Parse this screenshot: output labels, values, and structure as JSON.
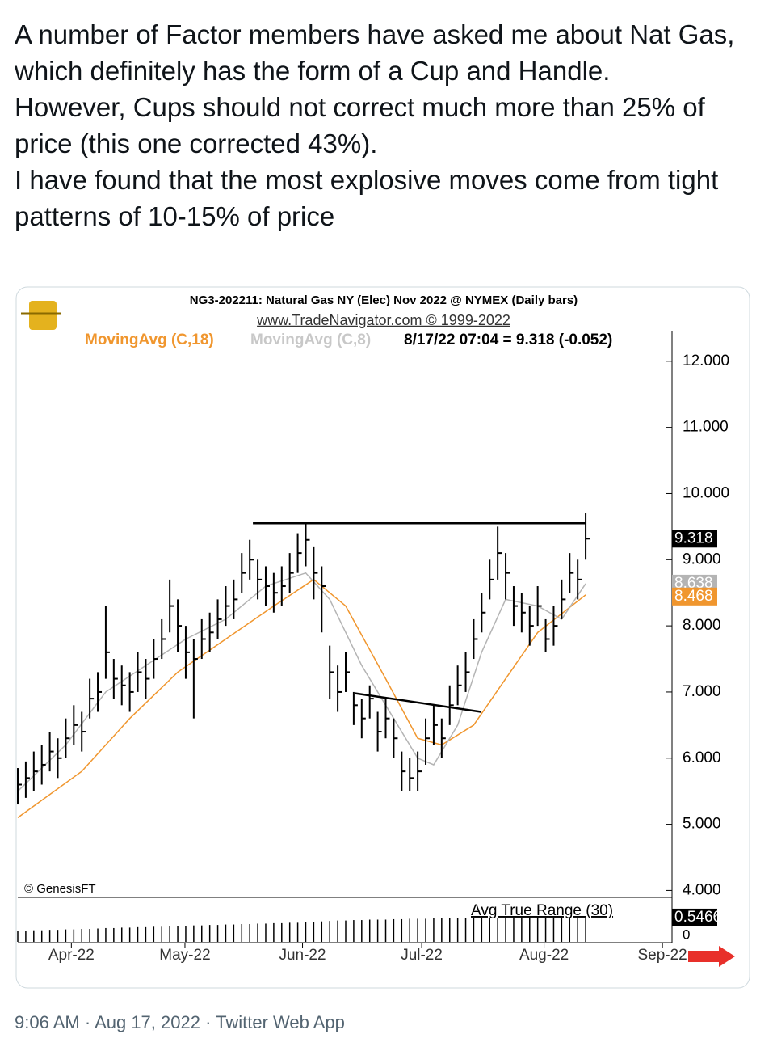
{
  "tweet": {
    "paragraphs": [
      "A number of Factor members have asked me about Nat Gas, which definitely has the form of a Cup and Handle.",
      "However, Cups should not correct much more than 25% of price (this one corrected 43%).",
      "I have found that the most explosive moves come from tight patterns of 10-15% of price"
    ],
    "footer": {
      "time": "9:06 AM",
      "date": "Aug 17, 2022",
      "app": "Twitter Web App"
    }
  },
  "chart_data": {
    "type": "ohlc",
    "title": "NG3-202211:  Natural Gas NY (Elec) Nov 2022 @ NYMEX  (Daily bars)",
    "subtitle": "www.TradeNavigator.com © 1999-2022",
    "status": "8/17/22 07:04 = 9.318 (-0.052)",
    "watermark": "© GenesisFT",
    "xlim": [
      0,
      82
    ],
    "xticks": [
      {
        "value": 6.7,
        "label": "Apr-22"
      },
      {
        "value": 20.9,
        "label": "May-22"
      },
      {
        "value": 35.6,
        "label": "Jun-22"
      },
      {
        "value": 50.5,
        "label": "Jul-22"
      },
      {
        "value": 65.8,
        "label": "Aug-22"
      },
      {
        "value": 80.6,
        "label": "Sep-22"
      }
    ],
    "ylim": [
      3.9,
      12.45
    ],
    "yticks": [
      {
        "value": 4,
        "label": "4.000"
      },
      {
        "value": 5,
        "label": "5.000"
      },
      {
        "value": 6,
        "label": "6.000"
      },
      {
        "value": 7,
        "label": "7.000"
      },
      {
        "value": 8,
        "label": "8.000"
      },
      {
        "value": 9,
        "label": "9.000"
      },
      {
        "value": 10,
        "label": "10.000"
      },
      {
        "value": 11,
        "label": "11.000"
      },
      {
        "value": 12,
        "label": "12.000"
      }
    ],
    "bars": {
      "color": "#000000",
      "high": [
        5.85,
        5.95,
        6.1,
        6.2,
        6.4,
        6.3,
        6.6,
        6.8,
        6.7,
        7.2,
        7.3,
        8.3,
        7.5,
        7.4,
        7.3,
        7.6,
        7.5,
        7.8,
        8.1,
        8.7,
        8.4,
        8.0,
        7.8,
        8.1,
        8.2,
        8.4,
        8.6,
        8.7,
        9.1,
        9.3,
        9.0,
        8.9,
        8.8,
        8.9,
        9.1,
        9.4,
        9.55,
        9.2,
        8.9,
        7.7,
        7.4,
        7.6,
        7.0,
        6.9,
        7.1,
        6.7,
        6.9,
        6.6,
        6.1,
        6.0,
        6.1,
        6.6,
        6.8,
        6.6,
        7.1,
        7.4,
        7.6,
        8.1,
        8.5,
        9.0,
        9.5,
        9.1,
        8.6,
        8.5,
        8.3,
        8.6,
        8.1,
        8.3,
        8.7,
        9.1,
        9.0,
        9.7
      ],
      "low": [
        5.3,
        5.4,
        5.5,
        5.6,
        5.8,
        5.7,
        6.0,
        6.2,
        6.1,
        6.6,
        6.7,
        7.2,
        6.9,
        6.8,
        6.7,
        7.0,
        6.9,
        7.2,
        7.5,
        7.9,
        7.6,
        7.2,
        6.6,
        7.5,
        7.6,
        7.8,
        8.0,
        8.1,
        8.5,
        8.7,
        8.4,
        8.3,
        8.2,
        8.3,
        8.5,
        8.8,
        8.9,
        8.4,
        7.9,
        6.9,
        6.7,
        7.0,
        6.5,
        6.3,
        6.6,
        6.1,
        6.3,
        6.0,
        5.5,
        5.5,
        5.5,
        5.9,
        6.2,
        6.0,
        6.5,
        6.8,
        7.0,
        7.5,
        7.9,
        8.4,
        8.7,
        8.4,
        8.0,
        7.9,
        7.7,
        8.0,
        7.6,
        7.7,
        8.1,
        8.5,
        8.4,
        9.0
      ],
      "close": [
        5.6,
        5.7,
        5.8,
        5.9,
        6.1,
        6.0,
        6.3,
        6.5,
        6.4,
        6.9,
        7.0,
        7.6,
        7.2,
        7.1,
        7.0,
        7.3,
        7.2,
        7.5,
        7.8,
        8.3,
        8.0,
        7.6,
        7.5,
        7.8,
        7.9,
        8.1,
        8.3,
        8.4,
        8.8,
        9.0,
        8.7,
        8.6,
        8.5,
        8.6,
        8.8,
        9.1,
        9.3,
        8.8,
        8.6,
        7.3,
        7.0,
        7.3,
        6.8,
        6.6,
        6.9,
        6.4,
        6.6,
        6.3,
        5.8,
        5.7,
        5.8,
        6.3,
        6.5,
        6.3,
        6.8,
        7.1,
        7.3,
        7.8,
        8.2,
        8.7,
        9.1,
        8.8,
        8.3,
        8.2,
        8.0,
        8.3,
        7.8,
        8.0,
        8.4,
        8.8,
        8.7,
        9.318
      ]
    },
    "moving_averages": [
      {
        "name": "MovingAvg (C,18)",
        "color": "#f0962e",
        "x": [
          0,
          8,
          14,
          20,
          26,
          32,
          37,
          41,
          46,
          50,
          53,
          57,
          61,
          65,
          71
        ],
        "values": [
          5.1,
          5.8,
          6.6,
          7.3,
          7.8,
          8.3,
          8.7,
          8.3,
          7.2,
          6.3,
          6.2,
          6.5,
          7.2,
          7.9,
          8.468
        ]
      },
      {
        "name": "MovingAvg (C,8)",
        "color": "#b4b4b4",
        "x": [
          0,
          6,
          11,
          16,
          21,
          26,
          31,
          36,
          39,
          43,
          47,
          50,
          52,
          55,
          58,
          61,
          65,
          68,
          71
        ],
        "values": [
          5.5,
          6.2,
          7.0,
          7.4,
          7.8,
          8.1,
          8.6,
          8.8,
          8.4,
          7.4,
          6.6,
          6.0,
          5.9,
          6.5,
          7.6,
          8.4,
          8.3,
          8.1,
          8.638
        ]
      }
    ],
    "trendlines": [
      {
        "color": "#000000",
        "x": [
          29.4,
          71
        ],
        "values": [
          9.55,
          9.55
        ]
      },
      {
        "color": "#000000",
        "x": [
          42.2,
          57.9
        ],
        "values": [
          6.98,
          6.7
        ]
      }
    ],
    "atr": {
      "name": "Avg True Range (30)",
      "ylim": [
        0,
        1
      ],
      "yticks": [
        0
      ],
      "values": [
        0.25,
        0.25,
        0.26,
        0.26,
        0.27,
        0.27,
        0.28,
        0.28,
        0.29,
        0.29,
        0.3,
        0.31,
        0.31,
        0.32,
        0.32,
        0.33,
        0.33,
        0.34,
        0.34,
        0.35,
        0.36,
        0.36,
        0.37,
        0.37,
        0.38,
        0.38,
        0.39,
        0.39,
        0.4,
        0.4,
        0.41,
        0.41,
        0.42,
        0.42,
        0.43,
        0.43,
        0.44,
        0.45,
        0.46,
        0.47,
        0.48,
        0.48,
        0.49,
        0.49,
        0.5,
        0.5,
        0.5,
        0.51,
        0.51,
        0.52,
        0.52,
        0.52,
        0.53,
        0.53,
        0.53,
        0.53,
        0.54,
        0.54,
        0.54,
        0.54,
        0.54,
        0.55,
        0.55,
        0.55,
        0.55,
        0.55,
        0.55,
        0.55,
        0.55,
        0.55,
        0.55,
        0.5466
      ]
    }
  }
}
